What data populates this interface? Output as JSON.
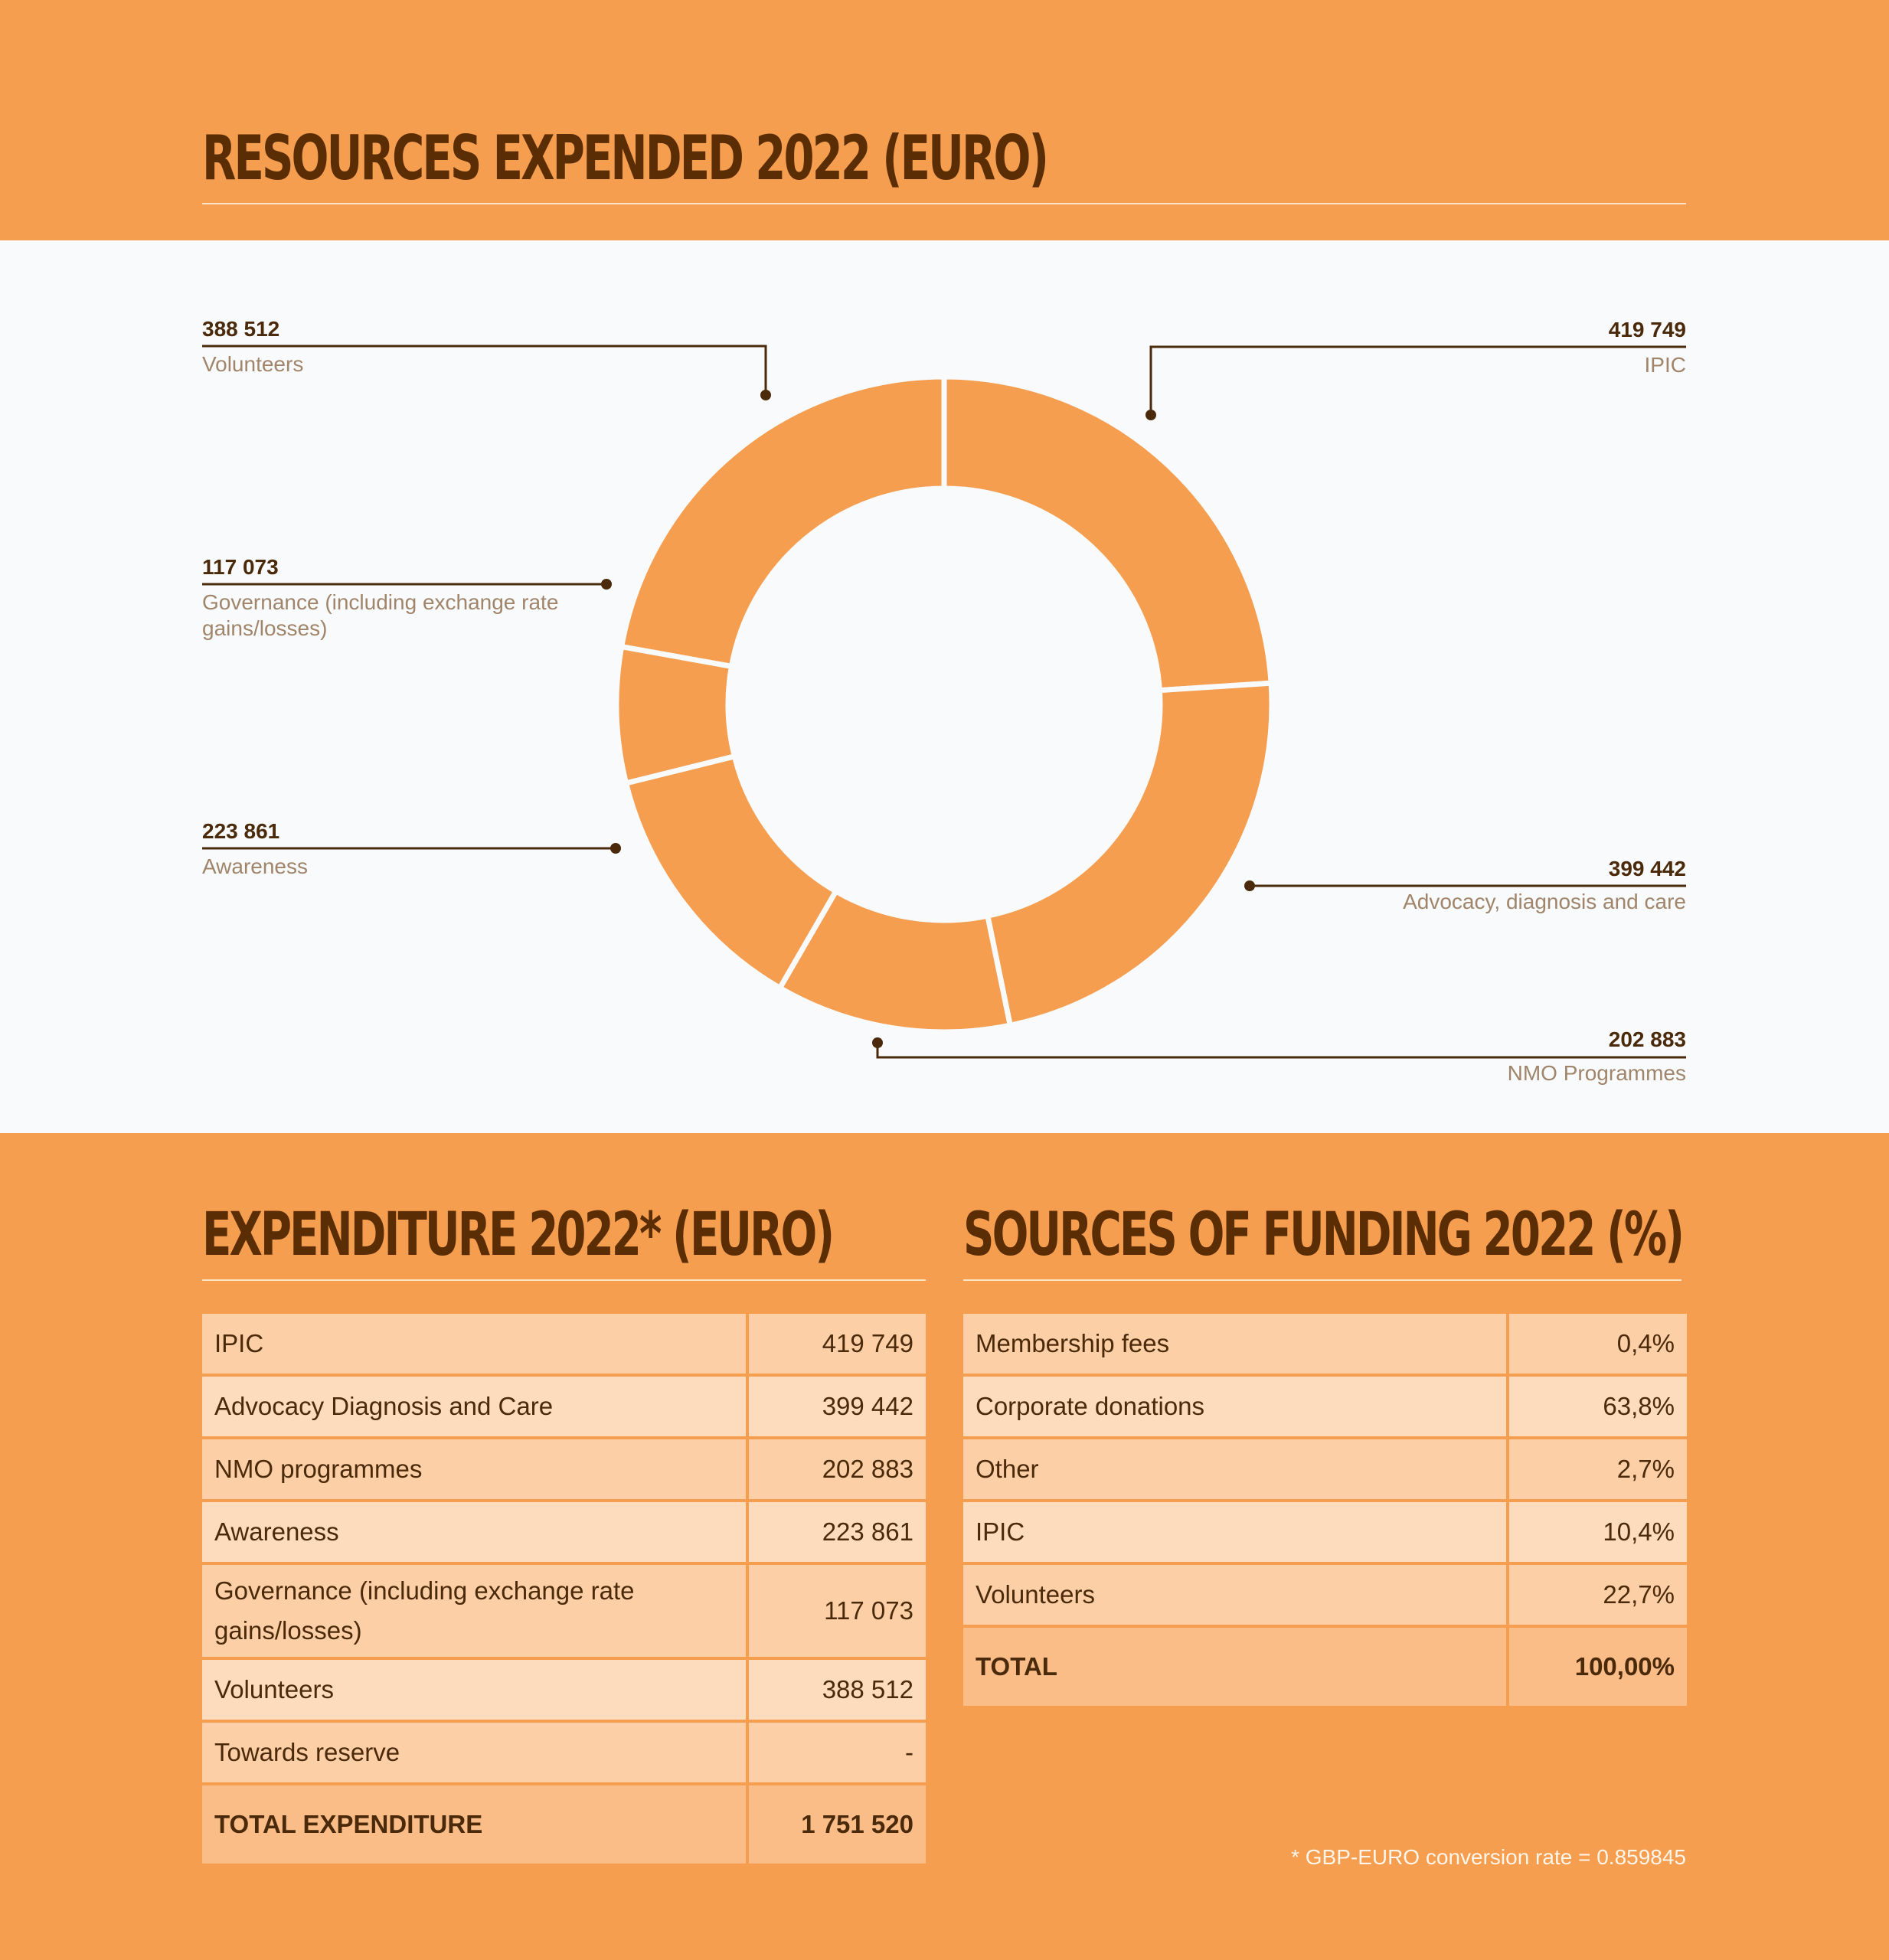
{
  "titles": {
    "main": "RESOURCES EXPENDED 2022 (EURO)",
    "expenditure": "EXPENDITURE 2022* (EURO)",
    "funding": "SOURCES OF FUNDING 2022 (%)"
  },
  "colors": {
    "background": "#f59e4f",
    "donut_fill": "#f59e4f",
    "heading": "#5a2d05",
    "label_name": "#a0856a"
  },
  "chart_data": {
    "type": "pie",
    "donut": true,
    "title": "RESOURCES EXPENDED 2022 (EURO)",
    "slices": [
      {
        "label": "IPIC",
        "value": 419749,
        "value_text": "419 749"
      },
      {
        "label": "Advocacy, diagnosis and care",
        "value": 399442,
        "value_text": "399 442"
      },
      {
        "label": "NMO Programmes",
        "value": 202883,
        "value_text": "202 883"
      },
      {
        "label": "Awareness",
        "value": 223861,
        "value_text": "223 861"
      },
      {
        "label": "Governance (including exchange rate gains/losses)",
        "value": 117073,
        "value_text": "117 073"
      },
      {
        "label": "Volunteers",
        "value": 388512,
        "value_text": "388 512"
      }
    ]
  },
  "labels": {
    "volunteers": {
      "value": "388 512",
      "name": "Volunteers"
    },
    "ipic": {
      "value": "419 749",
      "name": "IPIC"
    },
    "governance": {
      "value": "117 073",
      "name": "Governance (including exchange rate gains/losses)"
    },
    "awareness": {
      "value": "223 861",
      "name": "Awareness"
    },
    "advocacy": {
      "value": "399 442",
      "name": "Advocacy, diagnosis and care"
    },
    "nmo": {
      "value": "202 883",
      "name": "NMO Programmes"
    }
  },
  "expenditure": {
    "rows": [
      {
        "label": "IPIC",
        "value": "419 749"
      },
      {
        "label": "Advocacy Diagnosis and Care",
        "value": "399 442"
      },
      {
        "label": "NMO programmes",
        "value": "202 883"
      },
      {
        "label": "Awareness",
        "value": "223 861"
      },
      {
        "label": "Governance (including exchange rate gains/losses)",
        "value": "117 073"
      },
      {
        "label": "Volunteers",
        "value": "388 512"
      },
      {
        "label": "Towards reserve",
        "value": "-"
      }
    ],
    "total": {
      "label": "TOTAL EXPENDITURE",
      "value": "1 751 520"
    }
  },
  "funding": {
    "rows": [
      {
        "label": "Membership fees",
        "value": "0,4%"
      },
      {
        "label": "Corporate donations",
        "value": "63,8%"
      },
      {
        "label": "Other",
        "value": "2,7%"
      },
      {
        "label": "IPIC",
        "value": "10,4%"
      },
      {
        "label": "Volunteers",
        "value": "22,7%"
      }
    ],
    "total": {
      "label": "TOTAL",
      "value": "100,00%"
    }
  },
  "footnote": "* GBP-EURO conversion rate = 0.859845"
}
